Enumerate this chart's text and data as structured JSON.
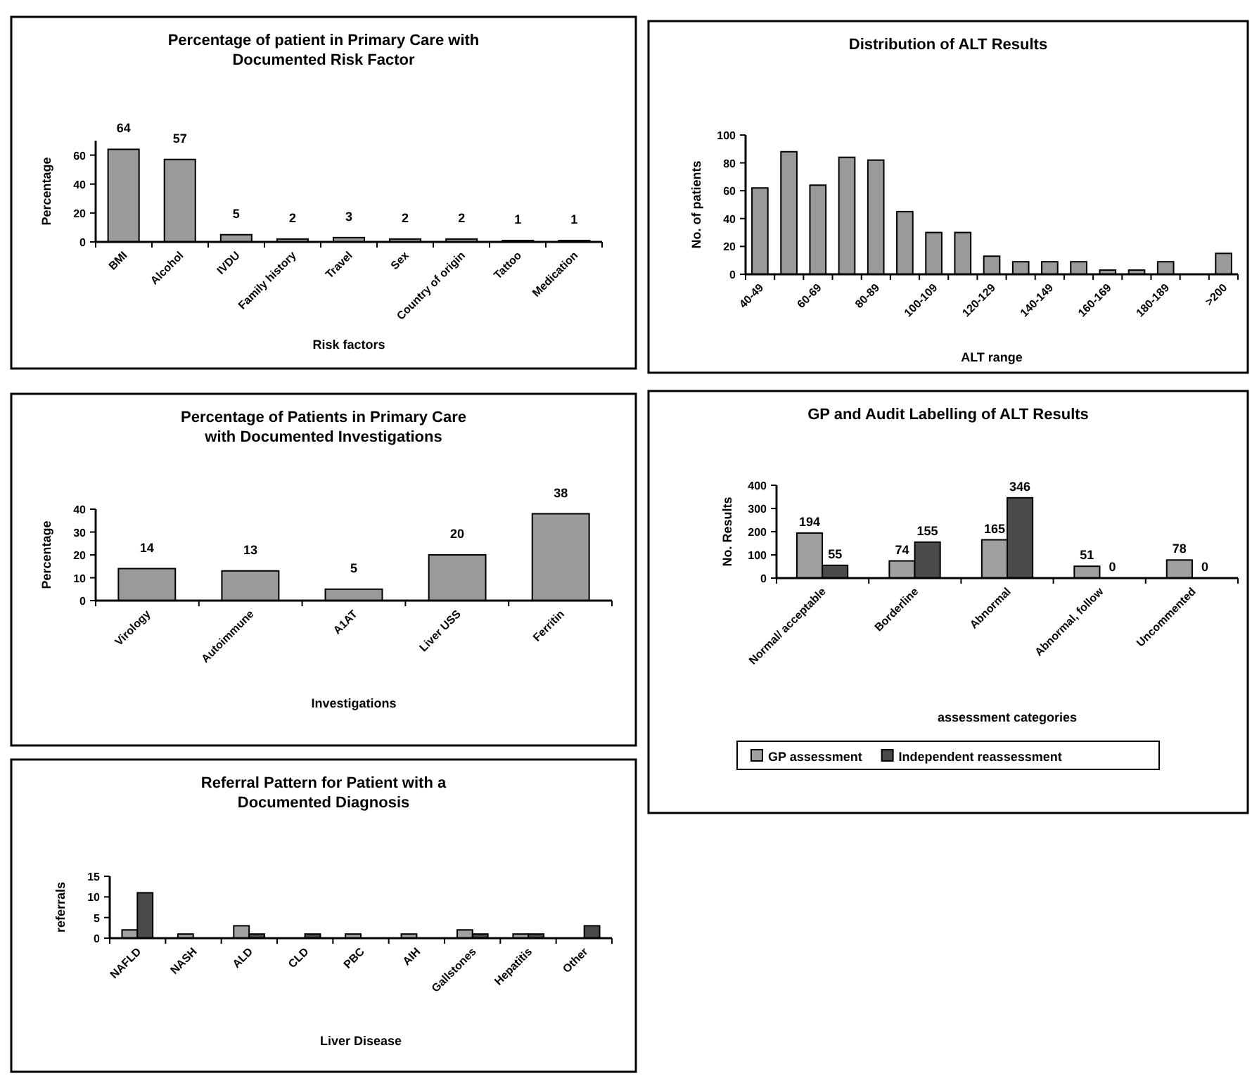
{
  "chart_data": [
    {
      "type": "bar",
      "title": "Percentage of patient in Primary Care with Documented Risk Factor",
      "xlabel": "Risk factors",
      "ylabel": "Percentage",
      "categories": [
        "BMI",
        "Alcohol",
        "IVDU",
        "Family history",
        "Travel",
        "Sex",
        "Country of origin",
        "Tattoo",
        "Medication"
      ],
      "values": [
        64,
        57,
        5,
        2,
        3,
        2,
        2,
        1,
        1
      ],
      "color": "#9a9a9a",
      "ylim": [
        0,
        70
      ],
      "yticks": [
        0,
        20,
        40,
        60
      ],
      "data_labels": true
    },
    {
      "type": "bar",
      "title": "Distribution of ALT Results",
      "xlabel": "ALT range",
      "ylabel": "No. of patients",
      "categories": [
        "40-49",
        null,
        "60-69",
        null,
        "80-89",
        null,
        "100-109",
        null,
        "120-129",
        null,
        "140-149",
        null,
        "160-169",
        null,
        "180-189",
        null,
        ">200"
      ],
      "values": [
        62,
        88,
        64,
        84,
        82,
        45,
        30,
        30,
        13,
        9,
        9,
        9,
        3,
        3,
        9,
        null,
        15
      ],
      "color": "#9a9a9a",
      "ylim": [
        0,
        100
      ],
      "yticks": [
        0,
        20,
        40,
        60,
        80,
        100
      ]
    },
    {
      "type": "bar",
      "title": "Percentage of Patients in Primary Care with Documented Investigations",
      "xlabel": "Investigations",
      "ylabel": "Percentage",
      "categories": [
        "Virology",
        "Autoimmune",
        "A1AT",
        "Liver USS",
        "Ferritin"
      ],
      "values": [
        14,
        13,
        5,
        20,
        38
      ],
      "color": "#9a9a9a",
      "ylim": [
        0,
        40
      ],
      "yticks": [
        0,
        10,
        20,
        30,
        40
      ],
      "data_labels": true
    },
    {
      "type": "bar",
      "title": "GP and Audit Labelling of ALT Results",
      "xlabel": "assessment categories",
      "ylabel": "No. Results",
      "categories": [
        "Normal/ acceptable",
        "Borderline",
        "Abnormal",
        "Abnormal, follow",
        "Uncommented"
      ],
      "series": [
        {
          "name": "GP assessment",
          "color": "#a0a0a0",
          "values": [
            194,
            74,
            165,
            51,
            78
          ]
        },
        {
          "name": "Independent reassessment",
          "color": "#4a4a4a",
          "values": [
            55,
            155,
            346,
            0,
            0
          ]
        }
      ],
      "ylim": [
        0,
        400
      ],
      "yticks": [
        0,
        100,
        200,
        300,
        400
      ],
      "data_labels": true,
      "legend": "bottom"
    },
    {
      "type": "bar",
      "title": "Referral Pattern for Patient with a Documented Diagnosis",
      "xlabel": "Liver Disease",
      "ylabel": "referrals",
      "categories": [
        "NAFLD",
        "NASH",
        "ALD",
        "CLD",
        "PBC",
        "AIH",
        "Gallstones",
        "Hepatitis",
        "Other"
      ],
      "series": [
        {
          "color": "#a0a0a0",
          "values": [
            2,
            1,
            3,
            null,
            1,
            1,
            2,
            1,
            null
          ]
        },
        {
          "color": "#4a4a4a",
          "values": [
            11,
            null,
            1,
            1,
            null,
            null,
            1,
            1,
            3
          ]
        }
      ],
      "ylim": [
        0,
        15
      ],
      "yticks": [
        0,
        5,
        10,
        15
      ]
    }
  ]
}
